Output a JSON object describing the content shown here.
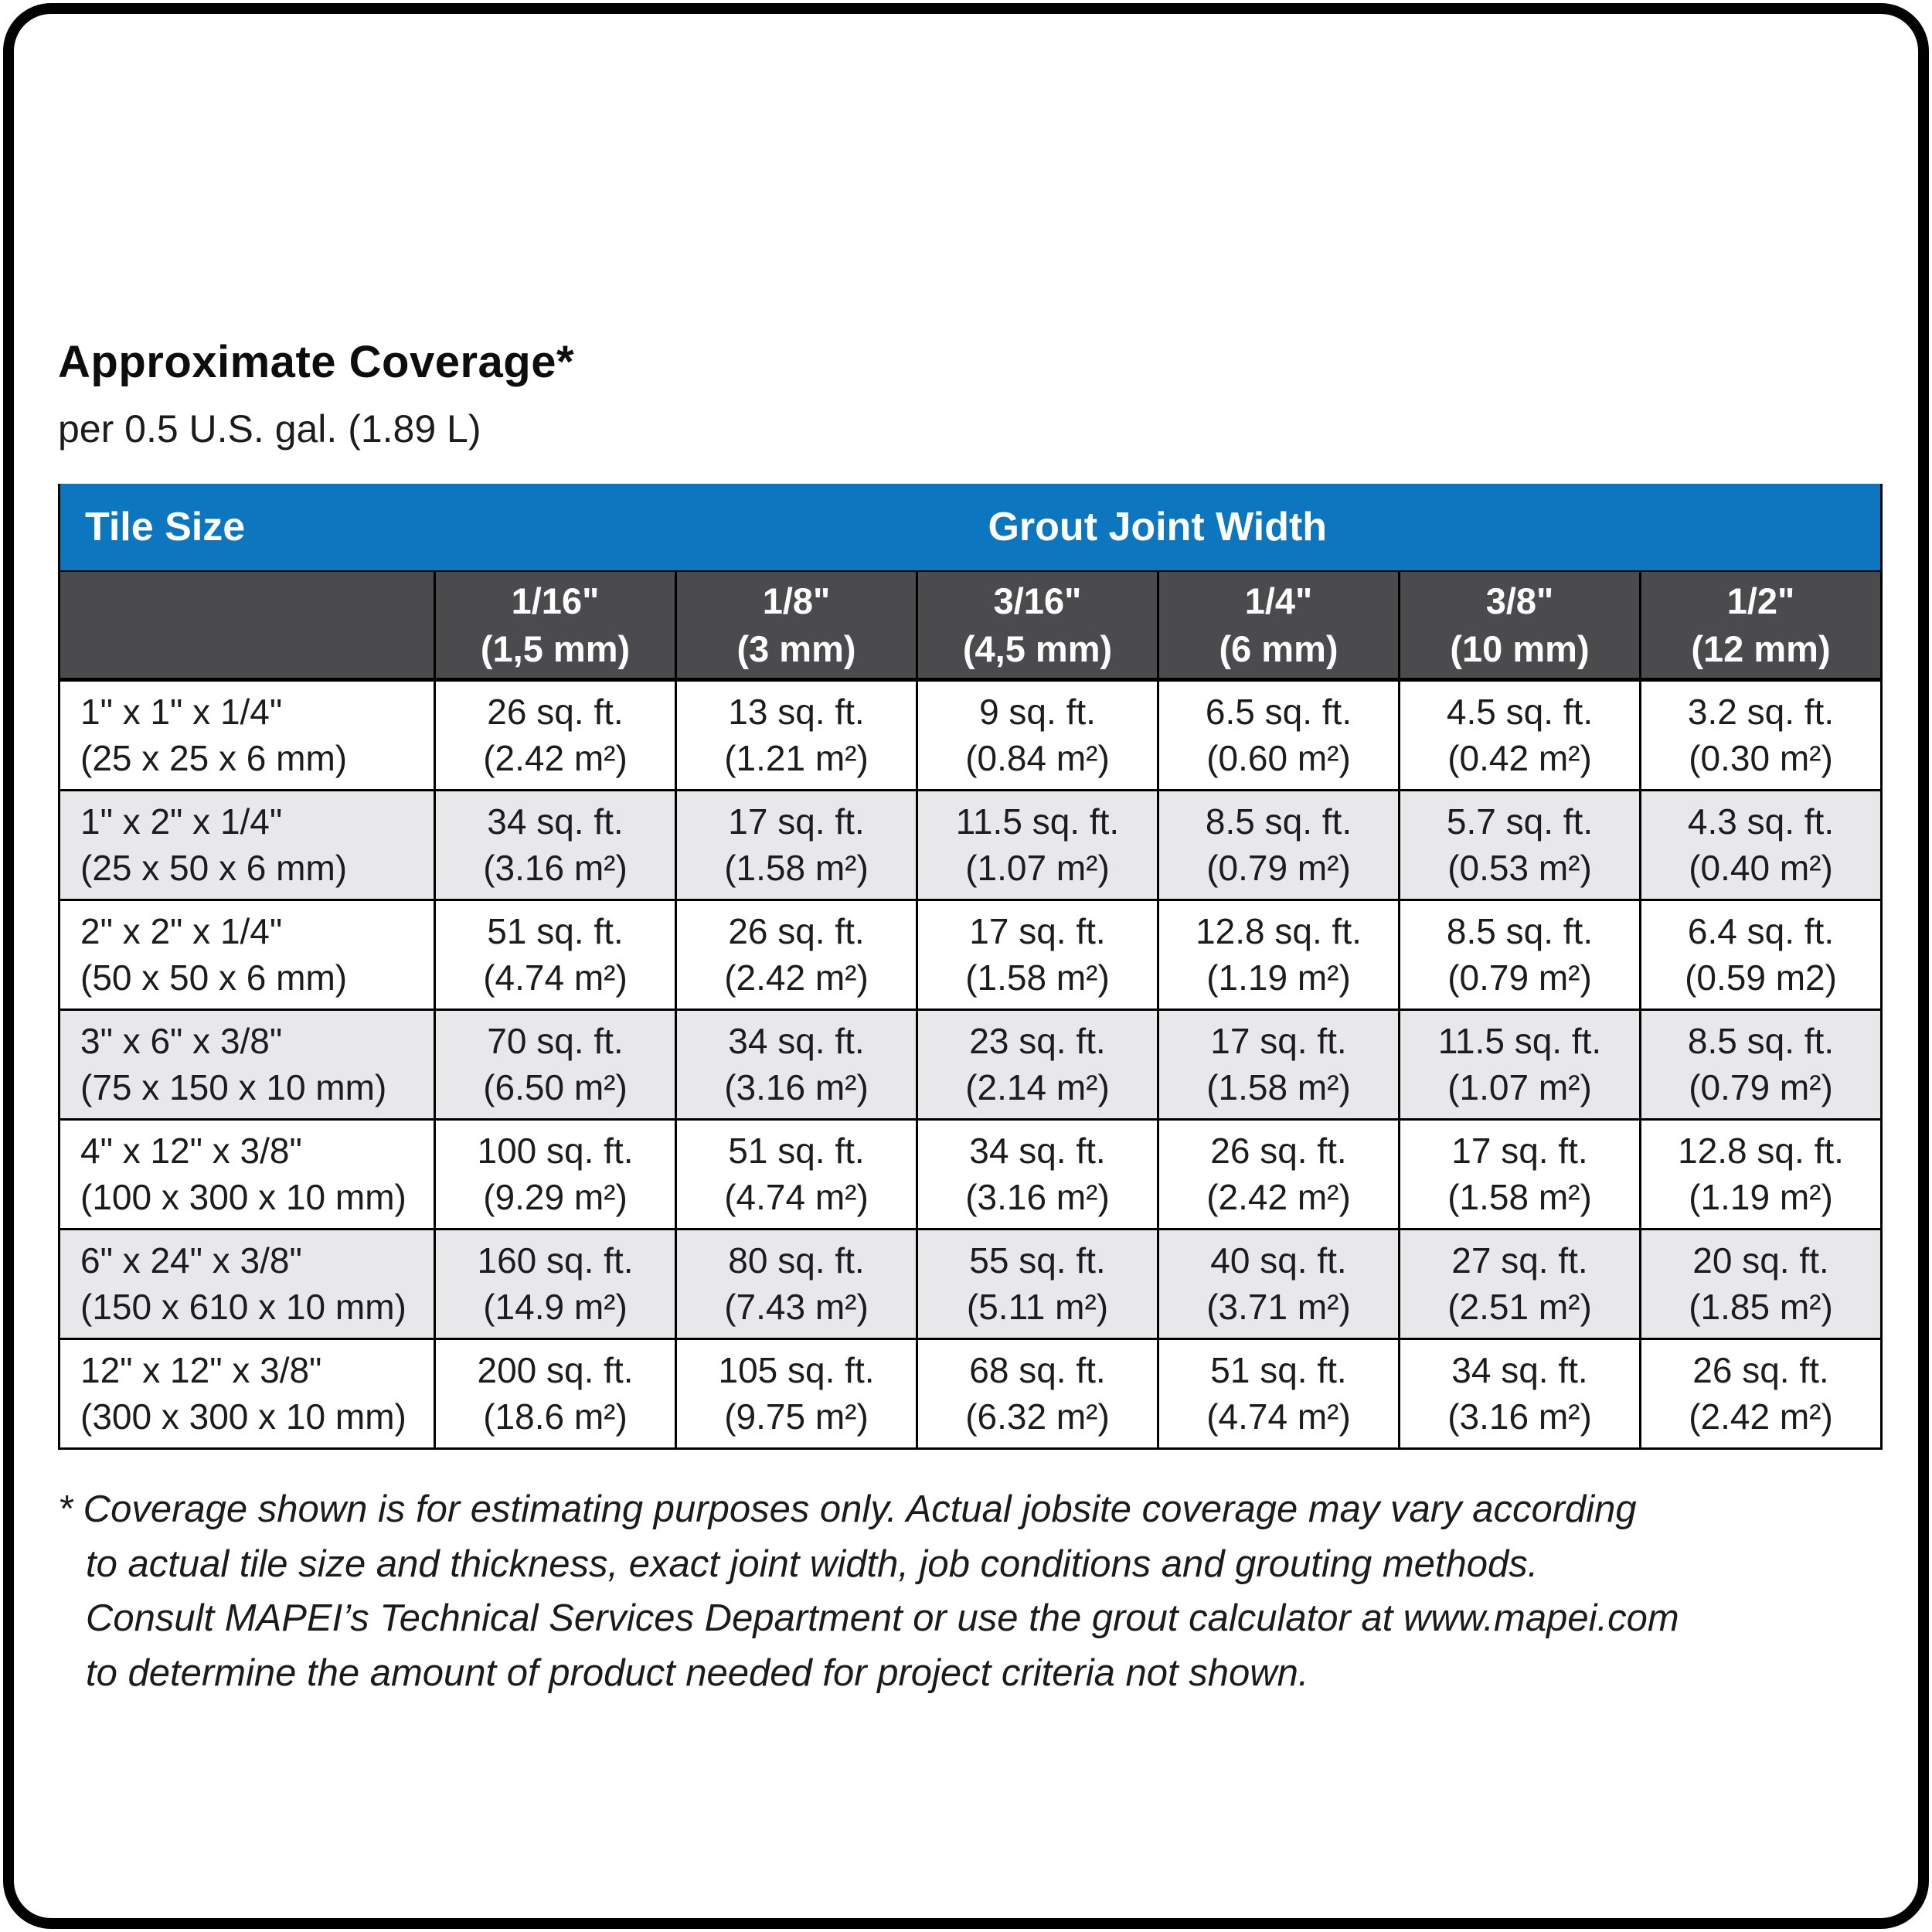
{
  "page": {
    "title": "Approximate Coverage*",
    "subtitle": "per 0.5 U.S. gal. (1.89 L)"
  },
  "colors": {
    "header_blue": "#0c77bf",
    "subheader_gray": "#4b4b4d",
    "alt_row_gray": "#e8e8ea",
    "border_black": "#000000"
  },
  "table": {
    "header": {
      "tile_size_label": "Tile Size",
      "grout_joint_width_label": "Grout Joint Width",
      "columns": [
        {
          "size": "1/16\"",
          "metric": "(1,5 mm)"
        },
        {
          "size": "1/8\"",
          "metric": "(3 mm)"
        },
        {
          "size": "3/16\"",
          "metric": "(4,5 mm)"
        },
        {
          "size": "1/4\"",
          "metric": "(6 mm)"
        },
        {
          "size": "3/8\"",
          "metric": "(10 mm)"
        },
        {
          "size": "1/2\"",
          "metric": "(12 mm)"
        }
      ]
    },
    "rows": [
      {
        "tile": "1\" x 1\" x 1/4\"",
        "tile_metric": "(25 x 25 x 6 mm)",
        "cells": [
          {
            "sqft": "26 sq. ft.",
            "m2": "(2.42 m²)"
          },
          {
            "sqft": "13 sq. ft.",
            "m2": "(1.21 m²)"
          },
          {
            "sqft": "9 sq. ft.",
            "m2": "(0.84 m²)"
          },
          {
            "sqft": "6.5 sq. ft.",
            "m2": "(0.60 m²)"
          },
          {
            "sqft": "4.5 sq. ft.",
            "m2": "(0.42 m²)"
          },
          {
            "sqft": "3.2 sq. ft.",
            "m2": "(0.30 m²)"
          }
        ]
      },
      {
        "tile": "1\" x 2\" x 1/4\"",
        "tile_metric": "(25 x 50 x 6 mm)",
        "cells": [
          {
            "sqft": "34 sq. ft.",
            "m2": "(3.16 m²)"
          },
          {
            "sqft": "17 sq. ft.",
            "m2": "(1.58 m²)"
          },
          {
            "sqft": "11.5 sq. ft.",
            "m2": "(1.07 m²)"
          },
          {
            "sqft": "8.5 sq. ft.",
            "m2": "(0.79 m²)"
          },
          {
            "sqft": "5.7 sq. ft.",
            "m2": "(0.53 m²)"
          },
          {
            "sqft": "4.3 sq. ft.",
            "m2": "(0.40 m²)"
          }
        ]
      },
      {
        "tile": "2\" x 2\" x 1/4\"",
        "tile_metric": "(50 x 50 x 6 mm)",
        "cells": [
          {
            "sqft": "51 sq. ft.",
            "m2": "(4.74 m²)"
          },
          {
            "sqft": "26 sq. ft.",
            "m2": "(2.42 m²)"
          },
          {
            "sqft": "17 sq. ft.",
            "m2": "(1.58 m²)"
          },
          {
            "sqft": "12.8 sq. ft.",
            "m2": "(1.19 m²)"
          },
          {
            "sqft": "8.5 sq. ft.",
            "m2": "(0.79 m²)"
          },
          {
            "sqft": "6.4 sq. ft.",
            "m2": "(0.59 m2)"
          }
        ]
      },
      {
        "tile": "3\" x 6\" x 3/8\"",
        "tile_metric": "(75 x 150 x 10 mm)",
        "cells": [
          {
            "sqft": "70 sq. ft.",
            "m2": "(6.50 m²)"
          },
          {
            "sqft": "34 sq. ft.",
            "m2": "(3.16 m²)"
          },
          {
            "sqft": "23 sq. ft.",
            "m2": "(2.14 m²)"
          },
          {
            "sqft": "17 sq. ft.",
            "m2": "(1.58 m²)"
          },
          {
            "sqft": "11.5 sq. ft.",
            "m2": "(1.07 m²)"
          },
          {
            "sqft": "8.5 sq. ft.",
            "m2": "(0.79 m²)"
          }
        ]
      },
      {
        "tile": "4\" x 12\" x 3/8\"",
        "tile_metric": "(100 x 300 x 10 mm)",
        "cells": [
          {
            "sqft": "100 sq. ft.",
            "m2": "(9.29 m²)"
          },
          {
            "sqft": "51 sq. ft.",
            "m2": "(4.74 m²)"
          },
          {
            "sqft": "34 sq. ft.",
            "m2": "(3.16 m²)"
          },
          {
            "sqft": "26 sq. ft.",
            "m2": "(2.42 m²)"
          },
          {
            "sqft": "17 sq. ft.",
            "m2": "(1.58 m²)"
          },
          {
            "sqft": "12.8 sq. ft.",
            "m2": "(1.19 m²)"
          }
        ]
      },
      {
        "tile": "6\" x 24\" x 3/8\"",
        "tile_metric": "(150 x 610 x 10 mm)",
        "cells": [
          {
            "sqft": "160 sq. ft.",
            "m2": "(14.9 m²)"
          },
          {
            "sqft": "80 sq. ft.",
            "m2": "(7.43 m²)"
          },
          {
            "sqft": "55 sq. ft.",
            "m2": "(5.11 m²)"
          },
          {
            "sqft": "40 sq. ft.",
            "m2": "(3.71 m²)"
          },
          {
            "sqft": "27 sq. ft.",
            "m2": "(2.51 m²)"
          },
          {
            "sqft": "20 sq. ft.",
            "m2": "(1.85 m²)"
          }
        ]
      },
      {
        "tile": "12\" x 12\" x 3/8\"",
        "tile_metric": "(300 x 300 x 10 mm)",
        "cells": [
          {
            "sqft": "200 sq. ft.",
            "m2": "(18.6 m²)"
          },
          {
            "sqft": "105 sq. ft.",
            "m2": "(9.75 m²)"
          },
          {
            "sqft": "68 sq. ft.",
            "m2": "(6.32 m²)"
          },
          {
            "sqft": "51 sq. ft.",
            "m2": "(4.74 m²)"
          },
          {
            "sqft": "34 sq. ft.",
            "m2": "(3.16 m²)"
          },
          {
            "sqft": "26 sq. ft.",
            "m2": "(2.42 m²)"
          }
        ]
      }
    ]
  },
  "footnote": {
    "line1": "* Coverage shown is for estimating purposes only. Actual jobsite coverage may vary according",
    "line2": "to actual tile size and thickness, exact joint width, job conditions and grouting methods.",
    "line3": "Consult MAPEI’s Technical Services Department or use the grout calculator at www.mapei.com",
    "line4": "to determine the amount of product needed for project criteria not shown."
  }
}
